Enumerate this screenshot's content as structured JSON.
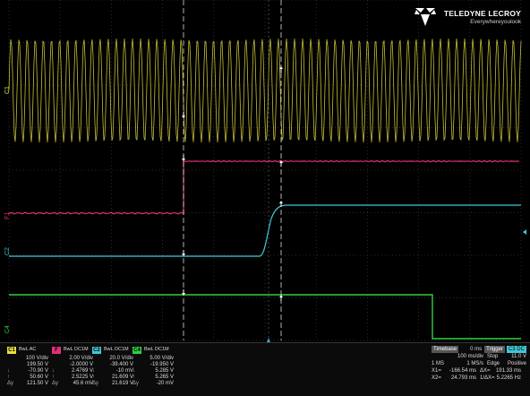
{
  "brand": {
    "name": "TELEDYNE LECROY",
    "tagline": "Everywhereyoulook"
  },
  "traces": {
    "c1": {
      "tag": "C1",
      "color": "#e8e040"
    },
    "f": {
      "tag": "F1",
      "color": "#e0307a"
    },
    "c2": {
      "tag": "C2",
      "color": "#40c8d8"
    },
    "c4": {
      "tag": "C4",
      "color": "#30d040"
    }
  },
  "channels": [
    {
      "badge": "C1",
      "color": "#e8e040",
      "coupling": "BwL AC",
      "rows": [
        [
          "",
          "100 V/div"
        ],
        [
          "",
          "199.50 V"
        ],
        [
          "↓",
          "-70.90 V"
        ],
        [
          "↑",
          "50.60 V"
        ],
        [
          "Δy",
          "121.50 V"
        ]
      ]
    },
    {
      "badge": "F",
      "color": "#e0307a",
      "coupling": "BwL DC1M",
      "rows": [
        [
          "",
          "2.00 V/div"
        ],
        [
          "",
          "-2.0000 V"
        ],
        [
          "↓",
          "2.4769 V"
        ],
        [
          "↑",
          "2.5225 V"
        ],
        [
          "Δy",
          "45.6 mV"
        ]
      ]
    },
    {
      "badge": "C2",
      "color": "#40c8d8",
      "coupling": "BwL DC1M",
      "rows": [
        [
          "",
          "20.0 V/div"
        ],
        [
          "",
          "-39.400 V"
        ],
        [
          "↓",
          "-10 mV"
        ],
        [
          "↑",
          "21.609 V"
        ],
        [
          "Δy",
          "21.619 V"
        ]
      ]
    },
    {
      "badge": "C4",
      "color": "#30d040",
      "coupling": "BwL DC1M",
      "rows": [
        [
          "",
          "5.00 V/div"
        ],
        [
          "",
          "-19.950 V"
        ],
        [
          "↓",
          "5.285 V"
        ],
        [
          "↑",
          "5.265 V"
        ],
        [
          "Δy",
          "-20 mV"
        ]
      ]
    }
  ],
  "timebase": {
    "label": "Timebase",
    "offset": "0 ms",
    "trigger_label": "Trigger",
    "trigger_src": "C3 DC",
    "per_div": "100 ms/div",
    "mode": "Stop",
    "level": "11.0 V",
    "samples": "1 MS",
    "rate": "1 MS/s",
    "type": "Edge",
    "slope": "Positive",
    "x1_label": "X1=",
    "x1": "-166.54 ms",
    "dx_label": "ΔX=",
    "dx": "191.33 ms",
    "x2_label": "X2=",
    "x2": "24.793 ms",
    "idx_label": "1/ΔX=",
    "idx": "5.2265 Hz"
  }
}
